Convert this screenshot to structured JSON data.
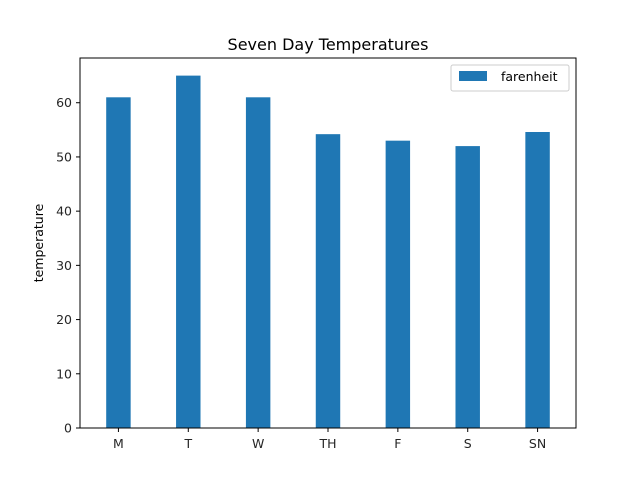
{
  "chart_data": {
    "type": "bar",
    "title": "Seven Day Temperatures",
    "xlabel": "",
    "ylabel": "temperature",
    "categories": [
      "M",
      "T",
      "W",
      "TH",
      "F",
      "S",
      "SN"
    ],
    "series": [
      {
        "name": "farenheit",
        "color": "#1f77b4",
        "values": [
          61,
          65,
          61,
          54.2,
          53,
          52,
          54.6
        ]
      }
    ],
    "ylim": [
      0,
      68.25
    ],
    "yticks": [
      0,
      10,
      20,
      30,
      40,
      50,
      60
    ],
    "grid": false,
    "legend_position": "top-right"
  }
}
